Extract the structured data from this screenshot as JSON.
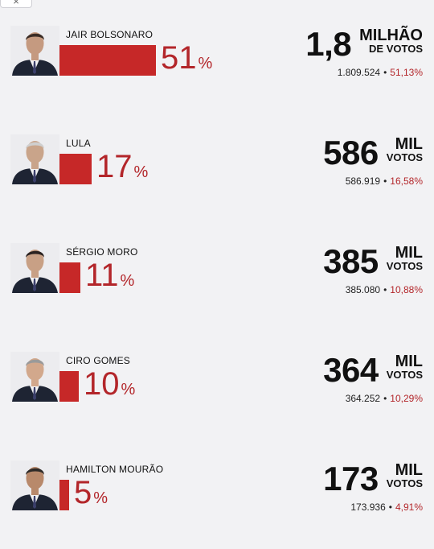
{
  "window": {
    "close_glyph": "×"
  },
  "chart_data": {
    "type": "bar",
    "title": "",
    "percent_sign": "%",
    "candidates": [
      {
        "name": "JAIR BOLSONARO",
        "percent": 51,
        "percent_label": "51",
        "big_number": "1,8",
        "unit_top": "MILHÃO",
        "unit_bottom": "DE VOTOS",
        "votes": "1.809.524",
        "share": "51,13%",
        "separator": "•"
      },
      {
        "name": "LULA",
        "percent": 17,
        "percent_label": "17",
        "big_number": "586",
        "unit_top": "MIL",
        "unit_bottom": "VOTOS",
        "votes": "586.919",
        "share": "16,58%",
        "separator": "•"
      },
      {
        "name": "SÉRGIO MORO",
        "percent": 11,
        "percent_label": "11",
        "big_number": "385",
        "unit_top": "MIL",
        "unit_bottom": "VOTOS",
        "votes": "385.080",
        "share": "10,88%",
        "separator": "•"
      },
      {
        "name": "CIRO GOMES",
        "percent": 10,
        "percent_label": "10",
        "big_number": "364",
        "unit_top": "MIL",
        "unit_bottom": "VOTOS",
        "votes": "364.252",
        "share": "10,29%",
        "separator": "•"
      },
      {
        "name": "HAMILTON MOURÃO",
        "percent": 5,
        "percent_label": "5",
        "big_number": "173",
        "unit_top": "MIL",
        "unit_bottom": "VOTOS",
        "votes": "173.936",
        "share": "4,91%",
        "separator": "•"
      }
    ],
    "colors": {
      "bar": "#c62828",
      "percent_text": "#b3262a",
      "text": "#111111"
    }
  }
}
